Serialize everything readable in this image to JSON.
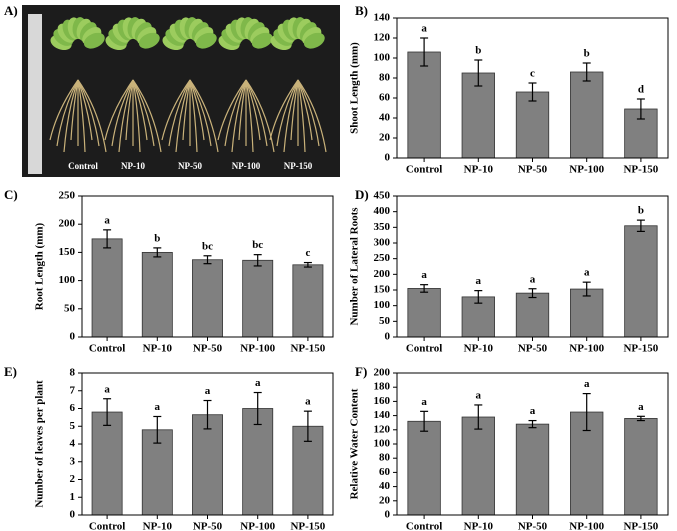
{
  "panel_a": {
    "label": "A)",
    "labels": [
      "Control",
      "NP-10",
      "NP-50",
      "NP-100",
      "NP-150"
    ]
  },
  "chart_data": [
    {
      "type": "bar",
      "label": "B)",
      "ylabel": "Shoot Length (mm)",
      "categories": [
        "Control",
        "NP-10",
        "NP-50",
        "NP-100",
        "NP-150"
      ],
      "values": [
        106,
        85,
        66,
        86,
        49
      ],
      "errors": [
        14,
        13,
        9,
        9,
        10
      ],
      "annotations": [
        "a",
        "b",
        "c",
        "b",
        "d"
      ],
      "ylim": [
        0,
        140
      ],
      "yticks": [
        0,
        20,
        40,
        60,
        80,
        100,
        120,
        140
      ],
      "color": "#808080"
    },
    {
      "type": "bar",
      "label": "C)",
      "ylabel": "Root Length (mm)",
      "categories": [
        "Control",
        "NP-10",
        "NP-50",
        "NP-100",
        "NP-150"
      ],
      "values": [
        174,
        150,
        137,
        136,
        128
      ],
      "errors": [
        16,
        8,
        7,
        10,
        4
      ],
      "annotations": [
        "a",
        "b",
        "bc",
        "bc",
        "c"
      ],
      "ylim": [
        0,
        250
      ],
      "yticks": [
        0,
        50,
        100,
        150,
        200,
        250
      ],
      "color": "#808080"
    },
    {
      "type": "bar",
      "label": "D)",
      "ylabel": "Number of Lateral Roots",
      "categories": [
        "Control",
        "NP-10",
        "NP-50",
        "NP-100",
        "NP-150"
      ],
      "values": [
        155,
        128,
        140,
        153,
        355
      ],
      "errors": [
        12,
        20,
        14,
        22,
        18
      ],
      "annotations": [
        "a",
        "a",
        "a",
        "a",
        "b"
      ],
      "ylim": [
        0,
        450
      ],
      "yticks": [
        0,
        50,
        100,
        150,
        200,
        250,
        300,
        350,
        400,
        450
      ],
      "color": "#808080"
    },
    {
      "type": "bar",
      "label": "E)",
      "ylabel": "Number of leaves per plant",
      "categories": [
        "Control",
        "NP-10",
        "NP-50",
        "NP-100",
        "NP-150"
      ],
      "values": [
        5.8,
        4.8,
        5.65,
        6.0,
        5.0
      ],
      "errors": [
        0.75,
        0.75,
        0.8,
        0.9,
        0.85
      ],
      "annotations": [
        "a",
        "a",
        "a",
        "a",
        "a"
      ],
      "ylim": [
        0,
        8
      ],
      "yticks": [
        0,
        1,
        2,
        3,
        4,
        5,
        6,
        7,
        8
      ],
      "color": "#808080"
    },
    {
      "type": "bar",
      "label": "F)",
      "ylabel": "Relative Water Content",
      "categories": [
        "Control",
        "NP-10",
        "NP-50",
        "NP-100",
        "NP-150"
      ],
      "values": [
        132,
        138,
        128,
        145,
        136
      ],
      "errors": [
        14,
        17,
        5,
        26,
        3
      ],
      "annotations": [
        "a",
        "a",
        "a",
        "a",
        "a"
      ],
      "ylim": [
        0,
        200
      ],
      "yticks": [
        0,
        20,
        40,
        60,
        80,
        100,
        120,
        140,
        160,
        180,
        200
      ],
      "color": "#808080"
    }
  ]
}
